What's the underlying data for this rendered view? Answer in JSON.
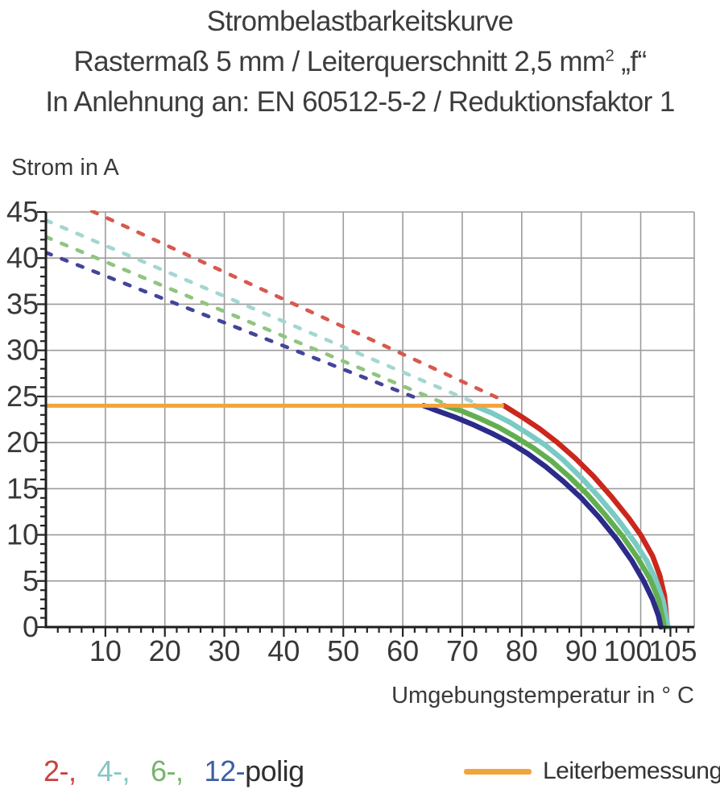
{
  "title": {
    "line1": "Strombelastbarkeitskurve",
    "line2_prefix": "Rastermaß 5 mm / Leiterquerschnitt 2,5 mm",
    "line2_sup": "2",
    "line2_suffix": " „f“",
    "line3": "In Anlehnung an: EN 60512-5-2 / Reduktionsfaktor 1"
  },
  "chart_data": {
    "type": "line",
    "title": "Strombelastbarkeitskurve",
    "xlabel": "Umgebungstemperatur in ° C",
    "ylabel": "Strom in A",
    "xlim": [
      0,
      109
    ],
    "ylim": [
      0,
      45
    ],
    "x_ticks": [
      10,
      20,
      30,
      40,
      50,
      60,
      70,
      80,
      90,
      100,
      105
    ],
    "y_ticks": [
      0,
      5,
      10,
      15,
      20,
      25,
      30,
      35,
      40,
      45
    ],
    "x_minor_step": 2,
    "y_minor_step": 1,
    "grid": true,
    "gridline_color": "#9c9c9c",
    "axis_color": "#1d1d1d",
    "tick_label_color": "#383838",
    "rated_current": {
      "label": "Leiterbemessungsstrom",
      "value": 24,
      "x_start": 0,
      "x_end": 77,
      "color": "#f2a43c"
    },
    "series": [
      {
        "name": "2-polig",
        "poles": 2,
        "style": "dashed-then-solid",
        "color": "#cb271d",
        "dashed_color": "#d7594f",
        "dashed_line": [
          [
            0,
            47.4
          ],
          [
            76.8,
            24.6
          ]
        ],
        "solid_points": [
          [
            77,
            24
          ],
          [
            80,
            22.8
          ],
          [
            83,
            21.5
          ],
          [
            86,
            20.0
          ],
          [
            89,
            18.3
          ],
          [
            92,
            16.4
          ],
          [
            95,
            14.2
          ],
          [
            98,
            11.8
          ],
          [
            100,
            10.0
          ],
          [
            102,
            7.7
          ],
          [
            103.2,
            5.6
          ],
          [
            104,
            3.4
          ],
          [
            104.5,
            0
          ]
        ]
      },
      {
        "name": "4-polig",
        "poles": 4,
        "style": "dashed-then-solid",
        "color": "#7bcac4",
        "dashed_color": "#a3d7d1",
        "dashed_line": [
          [
            0,
            44.1
          ],
          [
            71.8,
            24.4
          ]
        ],
        "solid_points": [
          [
            72,
            24
          ],
          [
            75,
            23.2
          ],
          [
            78,
            22.2
          ],
          [
            81,
            21.0
          ],
          [
            84,
            19.7
          ],
          [
            87,
            18.1
          ],
          [
            90,
            16.2
          ],
          [
            93,
            14.1
          ],
          [
            96,
            11.8
          ],
          [
            99,
            9.2
          ],
          [
            101,
            7.2
          ],
          [
            102.5,
            5.2
          ],
          [
            103.8,
            2.8
          ],
          [
            104.6,
            0
          ]
        ]
      },
      {
        "name": "6-polig",
        "poles": 6,
        "style": "dashed-then-solid",
        "color": "#63af50",
        "dashed_color": "#90c47f",
        "dashed_line": [
          [
            0,
            42.3
          ],
          [
            66.8,
            24.3
          ]
        ],
        "solid_points": [
          [
            67,
            24
          ],
          [
            70,
            23.4
          ],
          [
            73,
            22.6
          ],
          [
            76,
            21.7
          ],
          [
            79,
            20.6
          ],
          [
            82,
            19.4
          ],
          [
            85,
            18.0
          ],
          [
            88,
            16.3
          ],
          [
            91,
            14.4
          ],
          [
            94,
            12.2
          ],
          [
            97,
            9.8
          ],
          [
            99.5,
            7.5
          ],
          [
            101.5,
            5.3
          ],
          [
            103,
            3.0
          ],
          [
            104,
            0
          ]
        ]
      },
      {
        "name": "12-polig",
        "poles": 12,
        "style": "dashed-then-solid",
        "color": "#2b2b8a",
        "dashed_color": "#44449a",
        "dashed_line": [
          [
            0,
            40.6
          ],
          [
            63.2,
            24.6
          ]
        ],
        "solid_points": [
          [
            63.5,
            24
          ],
          [
            66,
            23.4
          ],
          [
            69,
            22.7
          ],
          [
            72,
            21.9
          ],
          [
            75,
            21.0
          ],
          [
            78,
            20.0
          ],
          [
            81,
            18.8
          ],
          [
            84,
            17.4
          ],
          [
            87,
            15.8
          ],
          [
            90,
            14.0
          ],
          [
            93,
            11.9
          ],
          [
            96,
            9.5
          ],
          [
            98.5,
            7.2
          ],
          [
            100.5,
            5.0
          ],
          [
            102,
            3.0
          ],
          [
            103,
            1.2
          ],
          [
            103.4,
            0
          ]
        ]
      }
    ]
  },
  "legend": {
    "items": [
      {
        "label": "2-,",
        "color": "#c9413c"
      },
      {
        "label": "4-,",
        "color": "#85c7c4"
      },
      {
        "label": "6-,",
        "color": "#74b46a"
      },
      {
        "label": "12-",
        "color": "#3e5fa5"
      }
    ],
    "polig_suffix": "polig",
    "rated_label": "Leiterbemessungsstrom"
  }
}
